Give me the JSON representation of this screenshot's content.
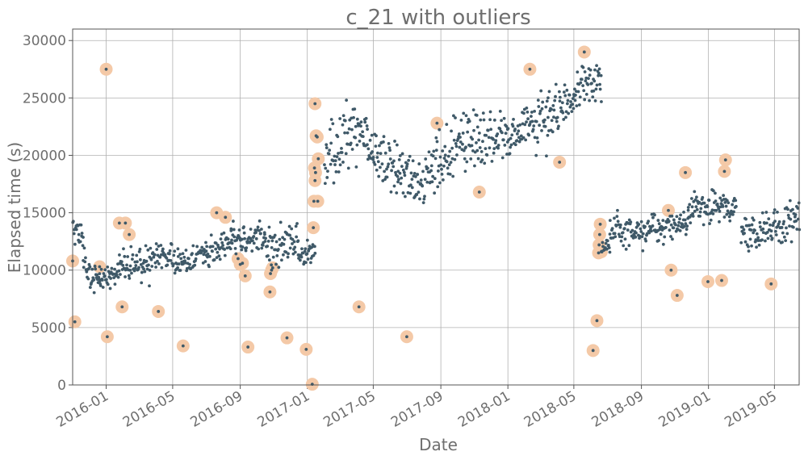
{
  "chart_data": {
    "type": "scatter",
    "title": "c_21 with outliers",
    "xlabel": "Date",
    "ylabel": "Elapsed time (s)",
    "xlim": [
      "2015-11-01",
      "2019-06-15"
    ],
    "ylim": [
      0,
      31000
    ],
    "x_ticks": [
      "2016-01",
      "2016-05",
      "2016-09",
      "2017-01",
      "2017-05",
      "2017-09",
      "2018-01",
      "2018-05",
      "2018-09",
      "2019-01",
      "2019-05"
    ],
    "y_ticks": [
      0,
      5000,
      10000,
      15000,
      20000,
      25000,
      30000
    ],
    "grid": true,
    "colors": {
      "points": "#3f5968",
      "outlier_marker": "#f4c9a7",
      "text": "#6e6e6e",
      "grid": "#b0b0b0"
    },
    "series": [
      {
        "role": "points",
        "segments": [
          {
            "start": "2015-11-01",
            "end": "2015-11-20",
            "y": [
              [
                0,
                14000
              ],
              [
                1,
                12500
              ]
            ],
            "spread": 600
          },
          {
            "start": "2015-11-20",
            "end": "2015-12-20",
            "y": [
              [
                0,
                11000
              ],
              [
                0.5,
                9300
              ],
              [
                1,
                9200
              ]
            ],
            "spread": 550
          },
          {
            "start": "2015-12-20",
            "end": "2016-01-25",
            "y": [
              [
                0,
                9300
              ],
              [
                1,
                9800
              ]
            ],
            "spread": 500
          },
          {
            "start": "2016-01-25",
            "end": "2016-03-20",
            "y": [
              [
                0,
                10800
              ],
              [
                1,
                10300
              ]
            ],
            "spread": 700
          },
          {
            "start": "2016-03-20",
            "end": "2016-05-10",
            "y": [
              [
                0,
                10600
              ],
              [
                0.5,
                11500
              ],
              [
                1,
                10900
              ]
            ],
            "spread": 650
          },
          {
            "start": "2016-05-10",
            "end": "2016-07-01",
            "y": [
              [
                0,
                10800
              ],
              [
                1,
                11600
              ]
            ],
            "spread": 600
          },
          {
            "start": "2016-07-01",
            "end": "2016-08-15",
            "y": [
              [
                0,
                11500
              ],
              [
                1,
                12600
              ]
            ],
            "spread": 600
          },
          {
            "start": "2016-08-15",
            "end": "2016-10-15",
            "y": [
              [
                0,
                12600
              ],
              [
                1,
                12700
              ]
            ],
            "spread": 650
          },
          {
            "start": "2016-10-15",
            "end": "2016-12-15",
            "y": [
              [
                0,
                12400
              ],
              [
                0.4,
                11700
              ],
              [
                1,
                12900
              ]
            ],
            "spread": 900
          },
          {
            "start": "2016-12-15",
            "end": "2017-01-15",
            "y": [
              [
                0,
                11300
              ],
              [
                1,
                11600
              ]
            ],
            "spread": 500
          },
          {
            "start": "2017-02-01",
            "end": "2017-04-20",
            "y": [
              [
                0,
                19500
              ],
              [
                0.6,
                21800
              ],
              [
                1,
                22000
              ]
            ],
            "spread": 1300
          },
          {
            "start": "2017-04-20",
            "end": "2017-06-15",
            "y": [
              [
                0,
                20500
              ],
              [
                1,
                18800
              ]
            ],
            "spread": 1000
          },
          {
            "start": "2017-06-15",
            "end": "2017-08-15",
            "y": [
              [
                0,
                18500
              ],
              [
                0.5,
                17800
              ],
              [
                1,
                18500
              ]
            ],
            "spread": 1100
          },
          {
            "start": "2017-08-15",
            "end": "2017-10-15",
            "y": [
              [
                0,
                19000
              ],
              [
                1,
                21500
              ]
            ],
            "spread": 1200
          },
          {
            "start": "2017-10-15",
            "end": "2017-12-31",
            "y": [
              [
                0,
                21500
              ],
              [
                1,
                21500
              ]
            ],
            "spread": 1200
          },
          {
            "start": "2017-12-31",
            "end": "2018-03-15",
            "y": [
              [
                0,
                21800
              ],
              [
                1,
                23000
              ]
            ],
            "spread": 1100
          },
          {
            "start": "2018-03-15",
            "end": "2018-05-01",
            "y": [
              [
                0,
                23500
              ],
              [
                1,
                25000
              ]
            ],
            "spread": 1000
          },
          {
            "start": "2018-05-01",
            "end": "2018-06-20",
            "y": [
              [
                0,
                25500
              ],
              [
                0.5,
                26500
              ],
              [
                1,
                25800
              ]
            ],
            "spread": 900
          },
          {
            "start": "2018-06-20",
            "end": "2018-07-05",
            "y": [
              [
                0,
                12000
              ],
              [
                1,
                12500
              ]
            ],
            "spread": 400
          },
          {
            "start": "2018-07-05",
            "end": "2018-10-01",
            "y": [
              [
                0,
                13500
              ],
              [
                1,
                13500
              ]
            ],
            "spread": 700
          },
          {
            "start": "2018-10-01",
            "end": "2018-11-25",
            "y": [
              [
                0,
                13400
              ],
              [
                1,
                14200
              ]
            ],
            "spread": 600
          },
          {
            "start": "2018-11-25",
            "end": "2019-02-20",
            "y": [
              [
                0,
                15400
              ],
              [
                0.5,
                15700
              ],
              [
                1,
                15300
              ]
            ],
            "spread": 700
          },
          {
            "start": "2019-03-01",
            "end": "2019-06-15",
            "y": [
              [
                0,
                13300
              ],
              [
                0.5,
                13500
              ],
              [
                1,
                14200
              ]
            ],
            "spread": 800
          }
        ]
      },
      {
        "role": "outliers",
        "points": [
          [
            "2015-11-01",
            10800
          ],
          [
            "2015-11-05",
            5500
          ],
          [
            "2015-12-20",
            10300
          ],
          [
            "2016-01-01",
            27500
          ],
          [
            "2016-01-03",
            4200
          ],
          [
            "2016-01-25",
            14100
          ],
          [
            "2016-01-30",
            6800
          ],
          [
            "2016-02-05",
            14100
          ],
          [
            "2016-02-12",
            13100
          ],
          [
            "2016-04-05",
            6400
          ],
          [
            "2016-05-20",
            3400
          ],
          [
            "2016-07-20",
            15000
          ],
          [
            "2016-08-05",
            14600
          ],
          [
            "2016-08-28",
            11000
          ],
          [
            "2016-09-01",
            10500
          ],
          [
            "2016-09-05",
            10600
          ],
          [
            "2016-09-10",
            9500
          ],
          [
            "2016-09-15",
            3300
          ],
          [
            "2016-10-25",
            8100
          ],
          [
            "2016-10-26",
            9700
          ],
          [
            "2016-10-28",
            10000
          ],
          [
            "2016-10-30",
            10200
          ],
          [
            "2016-11-25",
            4100
          ],
          [
            "2016-12-30",
            3100
          ],
          [
            "2017-01-10",
            60
          ],
          [
            "2017-01-12",
            13700
          ],
          [
            "2017-01-13",
            16000
          ],
          [
            "2017-01-14",
            18900
          ],
          [
            "2017-01-15",
            24500
          ],
          [
            "2017-01-15",
            17800
          ],
          [
            "2017-01-16",
            18500
          ],
          [
            "2017-01-17",
            21700
          ],
          [
            "2017-01-19",
            21600
          ],
          [
            "2017-01-20",
            16000
          ],
          [
            "2017-01-21",
            19700
          ],
          [
            "2017-04-05",
            6800
          ],
          [
            "2017-07-01",
            4200
          ],
          [
            "2017-08-25",
            22800
          ],
          [
            "2017-11-10",
            16800
          ],
          [
            "2018-02-10",
            27500
          ],
          [
            "2018-04-05",
            19400
          ],
          [
            "2018-05-20",
            29000
          ],
          [
            "2018-06-05",
            3000
          ],
          [
            "2018-06-12",
            5600
          ],
          [
            "2018-06-15",
            11500
          ],
          [
            "2018-06-16",
            12200
          ],
          [
            "2018-06-17",
            13100
          ],
          [
            "2018-06-18",
            14000
          ],
          [
            "2018-06-20",
            11600
          ],
          [
            "2018-10-20",
            15200
          ],
          [
            "2018-10-25",
            10000
          ],
          [
            "2018-11-05",
            7800
          ],
          [
            "2018-11-20",
            18500
          ],
          [
            "2018-12-31",
            9000
          ],
          [
            "2019-01-25",
            9100
          ],
          [
            "2019-01-30",
            18600
          ],
          [
            "2019-02-01",
            19600
          ],
          [
            "2019-04-25",
            8800
          ]
        ]
      }
    ]
  }
}
